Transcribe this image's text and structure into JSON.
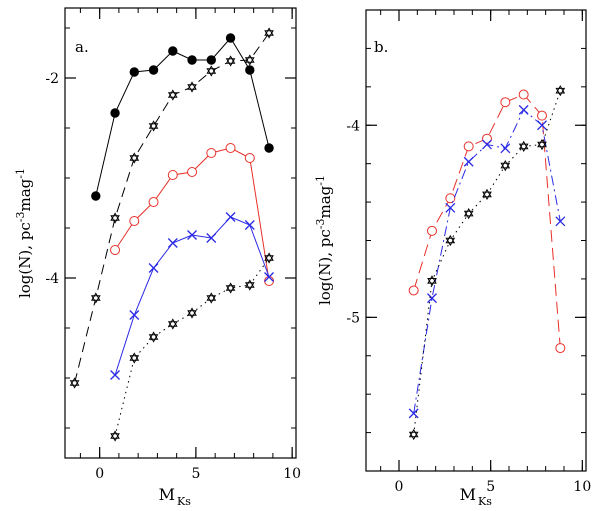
{
  "colors": {
    "black": "#000000",
    "red": "#e8302a",
    "blue": "#2a2ae6"
  },
  "chart_data": [
    {
      "type": "line",
      "panel_label": "a.",
      "xlabel_main": "M",
      "xlabel_sub": "Ks",
      "ylabel_main": "log(N),  pc",
      "ylabel_sup1": "-3",
      "ylabel_mid": "mag",
      "ylabel_sup2": "-1",
      "xlim": [
        -1.8,
        10.2
      ],
      "ylim": [
        -5.8,
        -1.3
      ],
      "xticks": [
        0,
        5,
        10
      ],
      "xtick_labels": [
        "0",
        "5",
        "10"
      ],
      "yticks": [
        -2,
        -4
      ],
      "ytick_labels": [
        "-2",
        "-4"
      ],
      "xminor_step": 1,
      "yminor_step": 0.5,
      "series": [
        {
          "name": "filled-circles-solid",
          "color": "black",
          "marker": "filled-circle",
          "dash": "",
          "x": [
            -0.2,
            0.8,
            1.8,
            2.8,
            3.8,
            4.8,
            5.8,
            6.8,
            7.8,
            8.8
          ],
          "y": [
            -3.18,
            -2.35,
            -1.94,
            -1.92,
            -1.73,
            -1.82,
            -1.82,
            -1.6,
            -1.92,
            -2.7
          ]
        },
        {
          "name": "stars-dashed-top",
          "color": "black",
          "marker": "star",
          "dash": "10,6",
          "x": [
            -1.3,
            -0.2,
            0.8,
            1.8,
            2.8,
            3.8,
            4.8,
            5.8,
            6.8,
            7.8,
            8.8
          ],
          "y": [
            -5.05,
            -4.2,
            -3.4,
            -2.8,
            -2.48,
            -2.17,
            -2.09,
            -1.93,
            -1.83,
            -1.82,
            -1.55
          ]
        },
        {
          "name": "red-circles",
          "color": "red",
          "marker": "open-circle",
          "dash": "",
          "x": [
            0.8,
            1.8,
            2.8,
            3.8,
            4.8,
            5.8,
            6.8,
            7.8,
            8.8
          ],
          "y": [
            -3.72,
            -3.43,
            -3.24,
            -2.97,
            -2.94,
            -2.75,
            -2.7,
            -2.8,
            -4.03
          ]
        },
        {
          "name": "blue-crosses",
          "color": "blue",
          "marker": "cross",
          "dash": "",
          "x": [
            0.8,
            1.8,
            2.8,
            3.8,
            4.8,
            5.8,
            6.8,
            7.8,
            8.8
          ],
          "y": [
            -4.97,
            -4.37,
            -3.9,
            -3.65,
            -3.57,
            -3.6,
            -3.39,
            -3.47,
            -3.99
          ]
        },
        {
          "name": "stars-dotted-bottom",
          "color": "black",
          "marker": "star",
          "dash": "1.5,4",
          "x": [
            0.8,
            1.8,
            2.8,
            3.8,
            4.8,
            5.8,
            6.8,
            7.8,
            8.8
          ],
          "y": [
            -5.58,
            -4.8,
            -4.59,
            -4.46,
            -4.35,
            -4.2,
            -4.1,
            -4.07,
            -3.8
          ]
        }
      ]
    },
    {
      "type": "line",
      "panel_label": "b.",
      "xlabel_main": "M",
      "xlabel_sub": "Ks",
      "ylabel_main": "log(N),  pc",
      "ylabel_sup1": "-3",
      "ylabel_mid": "mag",
      "ylabel_sup2": "-1",
      "xlim": [
        -1.8,
        10.2
      ],
      "ylim": [
        -5.8,
        -3.4
      ],
      "xticks": [
        0,
        5,
        10
      ],
      "xtick_labels": [
        "0",
        "5",
        "10"
      ],
      "yticks": [
        -4,
        -5
      ],
      "ytick_labels": [
        "-4",
        "-5"
      ],
      "xminor_step": 1,
      "yminor_step": 0.2,
      "series": [
        {
          "name": "red-circles-longdash",
          "color": "red",
          "marker": "open-circle",
          "dash": "12,6",
          "x": [
            0.8,
            1.8,
            2.8,
            3.8,
            4.8,
            5.8,
            6.8,
            7.8,
            8.8
          ],
          "y": [
            -4.86,
            -4.55,
            -4.38,
            -4.11,
            -4.07,
            -3.88,
            -3.84,
            -3.95,
            -5.16
          ]
        },
        {
          "name": "blue-crosses-dashdot",
          "color": "blue",
          "marker": "cross",
          "dash": "10,4,2,4",
          "x": [
            0.8,
            1.8,
            2.8,
            3.8,
            4.8,
            5.8,
            6.8,
            7.8,
            8.8
          ],
          "y": [
            -5.5,
            -4.9,
            -4.43,
            -4.19,
            -4.1,
            -4.12,
            -3.92,
            -4.0,
            -4.5
          ]
        },
        {
          "name": "stars-dotted",
          "color": "black",
          "marker": "star",
          "dash": "1.5,4",
          "x": [
            0.8,
            1.8,
            2.8,
            3.8,
            4.8,
            5.8,
            6.8,
            7.8,
            8.8
          ],
          "y": [
            -5.61,
            -4.81,
            -4.6,
            -4.46,
            -4.36,
            -4.21,
            -4.11,
            -4.1,
            -3.82
          ]
        }
      ]
    }
  ]
}
